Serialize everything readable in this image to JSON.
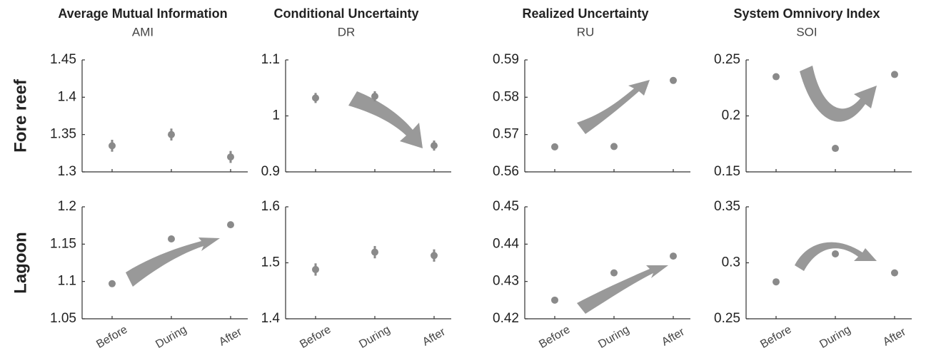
{
  "chart_data": [
    {
      "type": "scatter",
      "title": "Average Mutual Information",
      "subtitle": "AMI",
      "row_label": "Fore reef",
      "color": "#8a8a8a",
      "values": [
        1.335,
        1.35,
        1.32
      ],
      "errors": [
        0.008,
        0.008,
        0.008
      ],
      "ylim": [
        1.3,
        1.45
      ],
      "yticks": [
        1.3,
        1.35,
        1.4,
        1.45
      ]
    },
    {
      "type": "scatter",
      "title": "Conditional Uncertainty",
      "subtitle": "DR",
      "color": "#8a8a8a",
      "values": [
        1.032,
        1.035,
        0.947
      ],
      "errors": [
        0.009,
        0.009,
        0.009
      ],
      "ylim": [
        0.9,
        1.1
      ],
      "yticks": [
        0.9,
        1,
        1.1
      ]
    },
    {
      "type": "scatter",
      "title": "Realized Uncertainty",
      "subtitle": "RU",
      "color": "#8a8a8a",
      "values": [
        0.5667,
        0.5668,
        0.5845
      ],
      "errors": [
        0.0009,
        0.0009,
        0.0009
      ],
      "ylim": [
        0.56,
        0.59
      ],
      "yticks": [
        0.56,
        0.57,
        0.58,
        0.59
      ]
    },
    {
      "type": "scatter",
      "title": "System Omnivory Index",
      "subtitle": "SOI",
      "color": "#8a8a8a",
      "values": [
        0.235,
        0.171,
        0.237
      ],
      "ylim": [
        0.15,
        0.25
      ],
      "yticks": [
        0.15,
        0.2,
        0.25
      ]
    },
    {
      "type": "scatter",
      "row_label": "Lagoon",
      "color": "#8a8a8a",
      "categories": [
        "Before",
        "During",
        "After"
      ],
      "values": [
        1.097,
        1.157,
        1.176
      ],
      "ylim": [
        1.05,
        1.2
      ],
      "yticks": [
        1.05,
        1.1,
        1.15,
        1.2
      ]
    },
    {
      "type": "scatter",
      "color": "#8a8a8a",
      "categories": [
        "Before",
        "During",
        "After"
      ],
      "values": [
        1.488,
        1.519,
        1.513
      ],
      "errors": [
        0.011,
        0.011,
        0.011
      ],
      "ylim": [
        1.4,
        1.6
      ],
      "yticks": [
        1.4,
        1.5,
        1.6
      ]
    },
    {
      "type": "scatter",
      "color": "#8a8a8a",
      "categories": [
        "Before",
        "During",
        "After"
      ],
      "values": [
        0.425,
        0.4323,
        0.4368
      ],
      "ylim": [
        0.42,
        0.45
      ],
      "yticks": [
        0.42,
        0.43,
        0.44,
        0.45
      ]
    },
    {
      "type": "scatter",
      "color": "#8a8a8a",
      "categories": [
        "Before",
        "During",
        "After"
      ],
      "values": [
        0.283,
        0.308,
        0.291
      ],
      "ylim": [
        0.25,
        0.35
      ],
      "yticks": [
        0.25,
        0.3,
        0.35
      ]
    }
  ]
}
